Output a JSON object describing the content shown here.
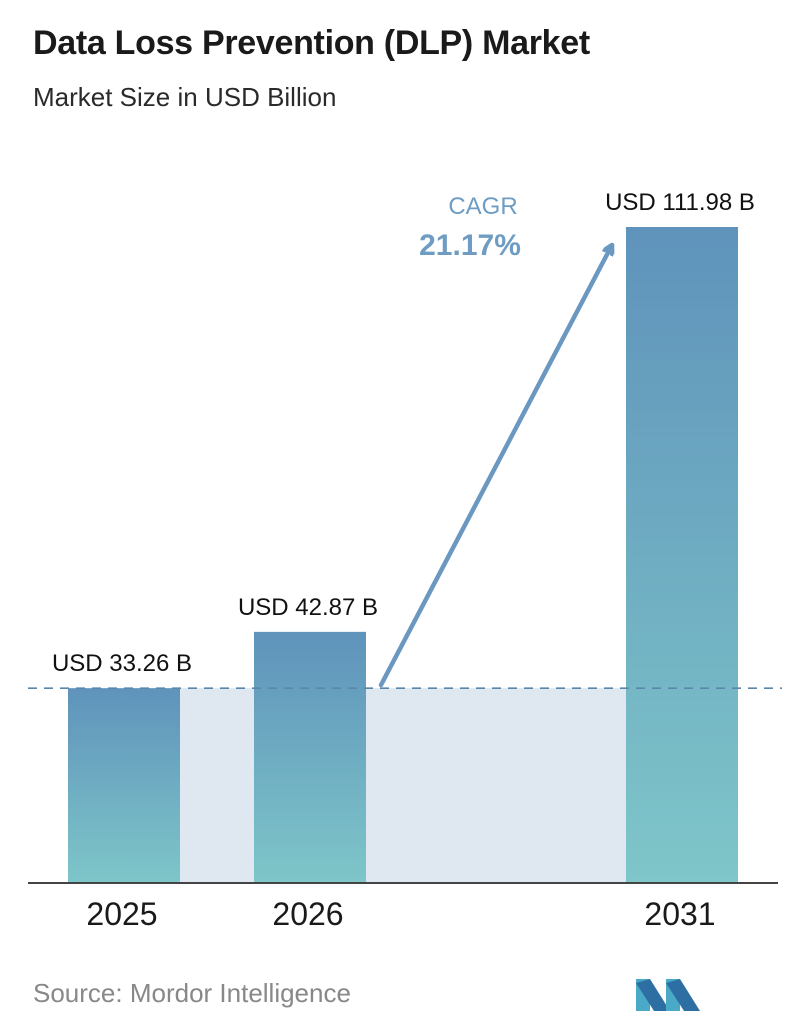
{
  "chart_data": {
    "type": "bar",
    "title": "Data Loss Prevention (DLP) Market",
    "subtitle": "Market Size in USD Billion",
    "categories": [
      "2025",
      "2026",
      "2031"
    ],
    "values": [
      33.26,
      42.87,
      111.98
    ],
    "value_labels": [
      "USD 33.26 B",
      "USD 42.87 B",
      "USD 111.98 B"
    ],
    "cagr_label": "CAGR",
    "cagr_value": "21.17%",
    "reference_line_value": 33.26,
    "ylim": [
      0,
      111.98
    ],
    "grid": false,
    "legend": "none",
    "colors": {
      "bar_top": "#5f93bb",
      "bar_bottom": "#7ec6c9",
      "band": "#dfe7f0",
      "arrow": "#6b98c1",
      "cagr_text": "#6f9cc3",
      "dashed_line": "#5a87aa",
      "axis": "#444444"
    }
  },
  "source": "Source:  Mordor Intelligence",
  "logo": {
    "icon": "mordor-intelligence-logo-icon"
  }
}
